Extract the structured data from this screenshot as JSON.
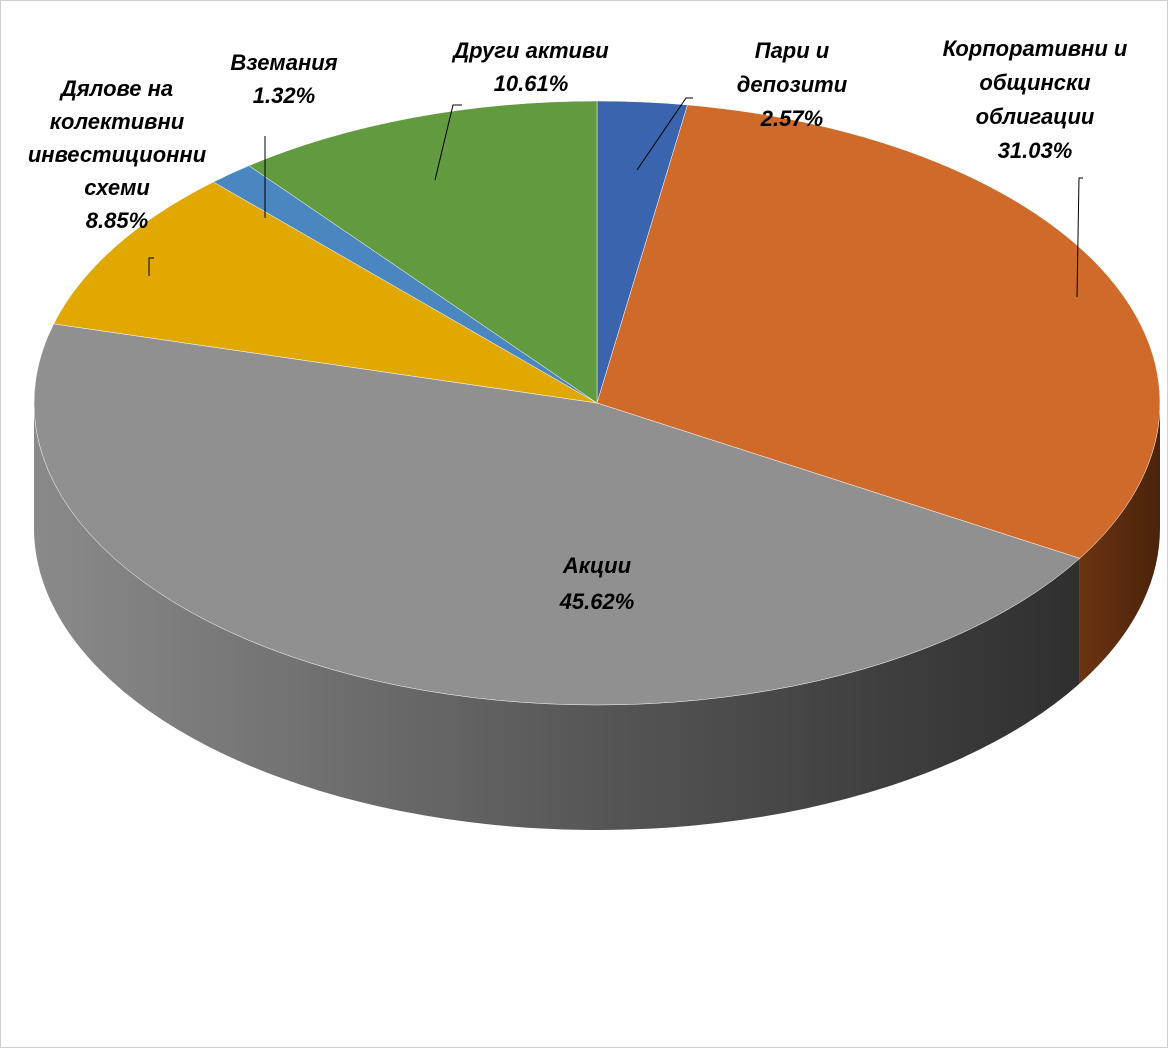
{
  "chart_data": {
    "type": "pie",
    "title": "",
    "slices": [
      {
        "label": [
          "Пари и",
          "депозити"
        ],
        "value": 2.57,
        "value_label": "2.57%",
        "color": "#3a64ad"
      },
      {
        "label": [
          "Корпоративни и",
          "общински",
          "облигации"
        ],
        "value": 31.03,
        "value_label": "31.03%",
        "color": "#d06a2a"
      },
      {
        "label": [
          "Акции"
        ],
        "value": 45.62,
        "value_label": "45.62%",
        "color": "#909090"
      },
      {
        "label": [
          "Дялове на",
          "колективни",
          "инвестиционни",
          "схеми"
        ],
        "value": 8.85,
        "value_label": "8.85%",
        "color": "#e0a800"
      },
      {
        "label": [
          "Вземания"
        ],
        "value": 1.32,
        "value_label": "1.32%",
        "color": "#4a86c0"
      },
      {
        "label": [
          "Други активи"
        ],
        "value": 10.61,
        "value_label": "10.61%",
        "color": "#619a3f"
      }
    ]
  }
}
